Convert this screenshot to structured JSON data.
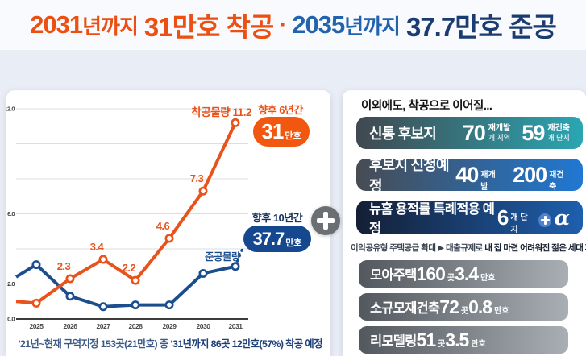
{
  "header": {
    "year1": "2031",
    "until1": "년까지",
    "big1": "31만호 착공",
    "dot": "·",
    "year2": "2035",
    "until2": "년까지",
    "big2": "37.7만호 준공"
  },
  "colors": {
    "accent_orange": "#eb4f12",
    "accent_navy": "#1b3c71",
    "accent_blue": "#2263ae",
    "line_start_orange": "#e8521b",
    "line_complete_blue": "#1c4e8e",
    "badge_orange": "#f1570f",
    "badge_navy": "#16488f",
    "bar1_teal": "#2aa6b2",
    "bar2_blue": "#2078d3",
    "bar3_navy": "#1e5fae",
    "gray_bar": "#53575e",
    "plus_gray": "#6b6f73"
  },
  "chart_data": {
    "type": "line",
    "title": "",
    "xlabel": "",
    "ylabel": "",
    "ylim": [
      0,
      12
    ],
    "grid": true,
    "grid_step": 2,
    "ytick_labels": [
      "12.0",
      "6.0",
      "2.0",
      "0.0"
    ],
    "categories": [
      "",
      "2025",
      "2026",
      "2027",
      "2028",
      "2029",
      "2030",
      "2031"
    ],
    "series": [
      {
        "name": "착공물량",
        "color": "#e8521b",
        "values": [
          1.0,
          0.9,
          2.3,
          3.4,
          2.2,
          4.6,
          7.3,
          11.2
        ],
        "point_labels": [
          "",
          "",
          "2.3",
          "3.4",
          "2.2",
          "4.6",
          "7.3",
          ""
        ]
      },
      {
        "name": "준공물량",
        "color": "#1c4e8e",
        "values": [
          2.4,
          3.1,
          1.3,
          0.7,
          0.8,
          0.8,
          2.6,
          3.0
        ],
        "point_labels": [
          "",
          "",
          "",
          "",
          "",
          "",
          "",
          ""
        ]
      }
    ],
    "annotations": {
      "start_label": "착공물량 11.2",
      "complete_label": "준공물량",
      "dashed_projection": "2031 준공물량 → 37.7만호"
    }
  },
  "left": {
    "annotation_start": "착공물량 11.2",
    "annotation_complete": "준공물량",
    "badge1": {
      "title": "향후 6년간",
      "num": "31",
      "unit": "만호"
    },
    "badge2": {
      "title": "향후 10년간",
      "num": "37.7",
      "unit": "만호"
    },
    "footnote": {
      "normal": "’21년~현재 구역지정 153곳(21만호) 중 ",
      "bold": "’31년까지 86곳 12만호(57%) 착공 예정"
    }
  },
  "right": {
    "title": "이외에도, 착공으로 이어질...",
    "row1": {
      "label": "신통 후보지",
      "g1": {
        "num": "70",
        "top": "재개발",
        "bottom": "개 지역"
      },
      "g2": {
        "num": "59",
        "top": "재건축",
        "bottom": "개 단지"
      }
    },
    "row2": {
      "label": "후보지 신청예정",
      "g1": {
        "num": "40",
        "unit": "재개발"
      },
      "g2": {
        "num": "200",
        "unit": "재건축"
      }
    },
    "row3": {
      "label": "뉴홈 용적률 특례적용 예정",
      "num": "6",
      "unit": "개 단지",
      "alpha": "α"
    },
    "caption": {
      "normal": "이익공유형 주택공급 확대 ▶ 대출규제로 ",
      "bold": "내 집 마련 어려워진 젊은 세대 지원"
    },
    "row4": {
      "label": "모아주택",
      "count": "160",
      "count_unit": "곳",
      "amount": "3.4",
      "amount_unit": "만호"
    },
    "row5": {
      "label": "소규모재건축",
      "count": "72",
      "count_unit": "곳",
      "amount": "0.8",
      "amount_unit": "만호"
    },
    "row6": {
      "label": "리모델링",
      "count": "51",
      "count_unit": "곳",
      "amount": "3.5",
      "amount_unit": "만호"
    }
  }
}
